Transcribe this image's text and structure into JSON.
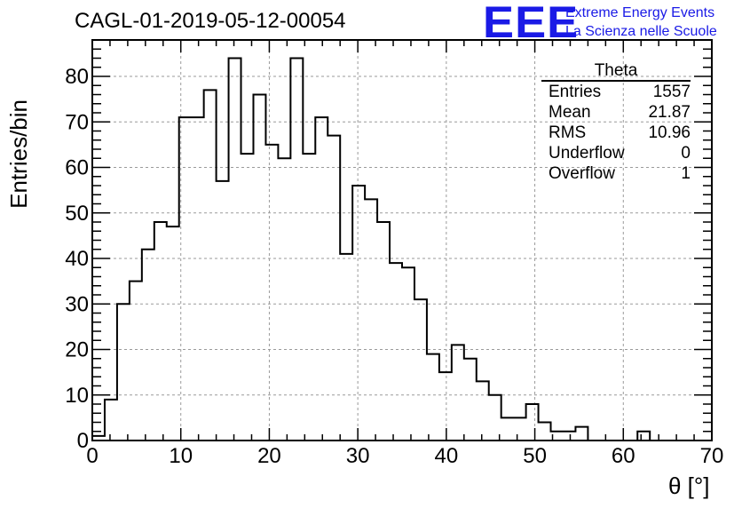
{
  "title": "CAGL-01-2019-05-12-00054",
  "logo": {
    "mark": "EEE",
    "line1": "Extreme Energy Events",
    "line2": "La Scienza nelle Scuole",
    "color": "#1a1ae6"
  },
  "stats": {
    "title": "Theta",
    "rows": [
      {
        "label": "Entries",
        "value": "1557"
      },
      {
        "label": "Mean",
        "value": "21.87"
      },
      {
        "label": "RMS",
        "value": "10.96"
      },
      {
        "label": "Underflow",
        "value": "0"
      },
      {
        "label": "Overflow",
        "value": "1"
      }
    ]
  },
  "chart_data": {
    "type": "bar",
    "histogram": true,
    "title": "CAGL-01-2019-05-12-00054",
    "xlabel": "θ [°]",
    "ylabel": "Entries/bin",
    "xlim": [
      0,
      70
    ],
    "ylim": [
      0,
      88
    ],
    "bin_width": 1.4,
    "x_ticks": [
      0,
      10,
      20,
      30,
      40,
      50,
      60,
      70
    ],
    "y_ticks": [
      0,
      10,
      20,
      30,
      40,
      50,
      60,
      70,
      80
    ],
    "grid": true,
    "values": [
      1,
      9,
      30,
      35,
      42,
      48,
      47,
      71,
      71,
      77,
      57,
      84,
      63,
      76,
      65,
      62,
      84,
      63,
      71,
      67,
      41,
      56,
      53,
      48,
      39,
      38,
      31,
      19,
      15,
      21,
      18,
      13,
      10,
      5,
      5,
      8,
      4,
      2,
      2,
      3,
      0,
      0,
      0,
      0,
      2,
      0,
      0,
      0,
      0,
      0
    ]
  }
}
